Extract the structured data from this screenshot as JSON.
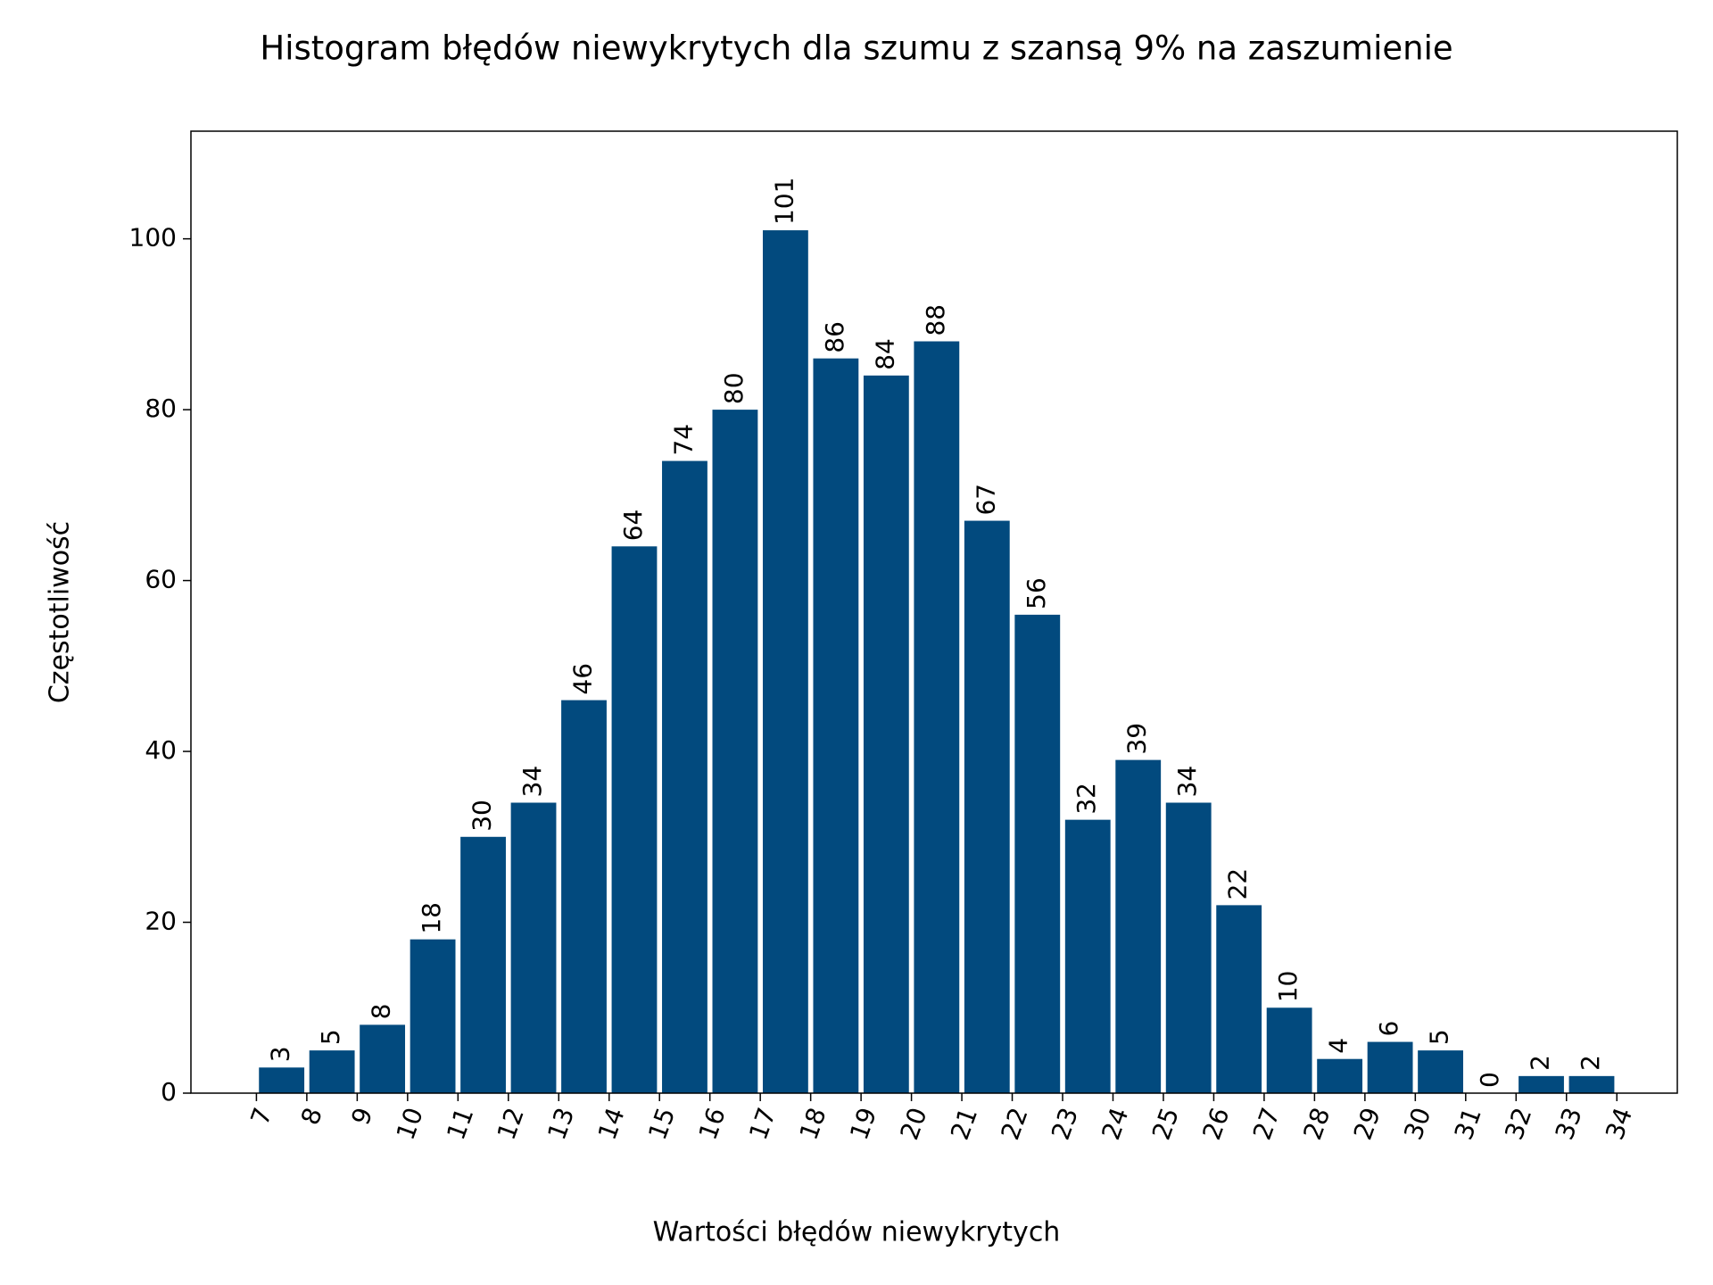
{
  "chart_data": {
    "type": "histogram",
    "title": "Histogram błędów niewykrytych dla szumu z szansą 9% na zaszumienie",
    "xlabel": "Wartości błędów niewykrytych",
    "ylabel": "Częstotliwość",
    "bins": [
      7,
      8,
      9,
      10,
      11,
      12,
      13,
      14,
      15,
      16,
      17,
      18,
      19,
      20,
      21,
      22,
      23,
      24,
      25,
      26,
      27,
      28,
      29,
      30,
      31,
      32,
      33,
      34
    ],
    "values": [
      3,
      5,
      8,
      18,
      30,
      34,
      46,
      64,
      74,
      80,
      101,
      86,
      84,
      88,
      67,
      56,
      32,
      39,
      34,
      22,
      10,
      4,
      6,
      5,
      0,
      2,
      2
    ],
    "color": "#024a7e",
    "xlim": [
      5.7,
      35.2
    ],
    "xticks": [
      7,
      8,
      9,
      10,
      11,
      12,
      13,
      14,
      15,
      16,
      17,
      18,
      19,
      20,
      21,
      22,
      23,
      24,
      25,
      26,
      27,
      28,
      29,
      30,
      31,
      32,
      33,
      34
    ],
    "ylim": [
      0,
      112.6
    ],
    "yticks": [
      0,
      20,
      40,
      60,
      80,
      100
    ]
  }
}
